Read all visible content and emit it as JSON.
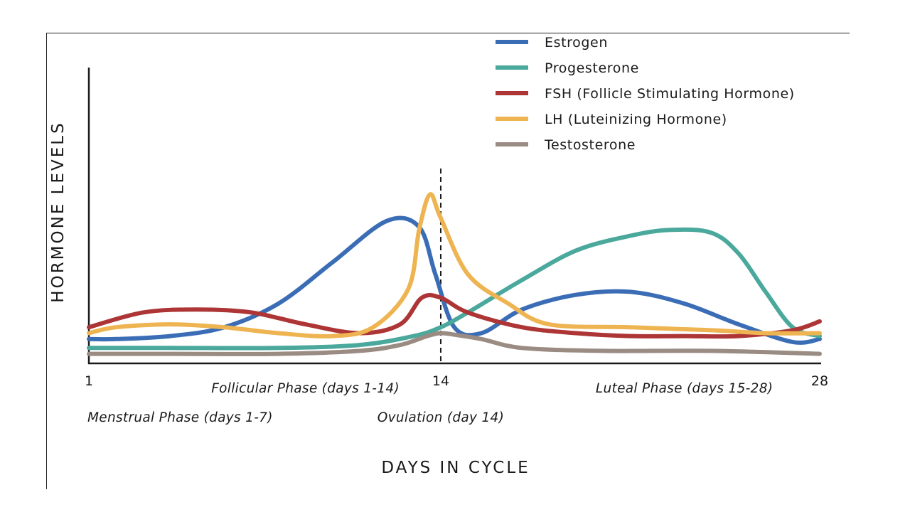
{
  "chart_data": {
    "type": "line",
    "title": "",
    "xlabel": "DAYS IN CYCLE",
    "ylabel": "HORMONE LEVELS",
    "xlim": [
      1,
      28
    ],
    "ylim": [
      0,
      100
    ],
    "x_ticks": [
      {
        "value": 1,
        "label": "1"
      },
      {
        "value": 14,
        "label": "14"
      },
      {
        "value": 28,
        "label": "28"
      }
    ],
    "reference_line": {
      "x": 14.0,
      "style": "dashed"
    },
    "annotations": [
      {
        "text": "Follicular Phase (days 1-14)",
        "x": 9,
        "row": 1
      },
      {
        "text": "Luteal Phase (days 15-28)",
        "x": 23,
        "row": 1
      },
      {
        "text": "Menstrual Phase (days 1-7)",
        "x": 1,
        "row": 2
      },
      {
        "text": "Ovulation (day 14)",
        "x": 14,
        "row": 2
      }
    ],
    "legend_position": "top-right",
    "grid": false,
    "series": [
      {
        "name": "Estrogen",
        "color": "#3a6db5",
        "x": [
          1,
          2,
          4,
          6,
          8,
          10,
          12,
          13.2,
          13.8,
          14.5,
          15.5,
          17,
          19,
          21,
          23,
          25,
          27,
          28
        ],
        "y": [
          8,
          8,
          9,
          12,
          20,
          34,
          48,
          46,
          30,
          12,
          10,
          18,
          23,
          24,
          20,
          13,
          7,
          8
        ]
      },
      {
        "name": "Progesterone",
        "color": "#4aa89c",
        "x": [
          1,
          4,
          8,
          11,
          13,
          14,
          15,
          17,
          19,
          21,
          22.5,
          24,
          25,
          26,
          27,
          28
        ],
        "y": [
          5,
          5,
          5,
          6,
          9,
          12,
          17,
          28,
          38,
          43,
          45,
          44,
          37,
          24,
          12,
          9
        ]
      },
      {
        "name": "FSH (Follicle Stimulating Hormone)",
        "color": "#ad3535",
        "x": [
          1,
          3,
          5,
          7,
          9,
          11,
          12.5,
          13.3,
          14,
          15,
          17,
          19,
          21,
          23,
          25,
          27,
          28
        ],
        "y": [
          12,
          17,
          18,
          17,
          13,
          10,
          13,
          22,
          22,
          17,
          12,
          10,
          9,
          9,
          9,
          11,
          14
        ]
      },
      {
        "name": "LH (Luteinizing Hormone)",
        "color": "#eeb451",
        "x": [
          1,
          2,
          4,
          6,
          8,
          10,
          11.5,
          12.8,
          13.2,
          13.6,
          14,
          15,
          16.5,
          18,
          21,
          24,
          26,
          28
        ],
        "y": [
          10,
          12,
          13,
          12,
          10,
          9,
          12,
          25,
          45,
          57,
          49,
          30,
          20,
          13,
          12,
          11,
          10,
          10
        ]
      },
      {
        "name": "Testosterone",
        "color": "#9a8c83",
        "x": [
          1,
          4,
          8,
          11,
          12.5,
          13.5,
          14,
          14.5,
          15.5,
          17,
          20,
          24,
          28
        ],
        "y": [
          3,
          3,
          3,
          4,
          6,
          9,
          10,
          9.5,
          8,
          5,
          4,
          4,
          3
        ]
      }
    ]
  }
}
